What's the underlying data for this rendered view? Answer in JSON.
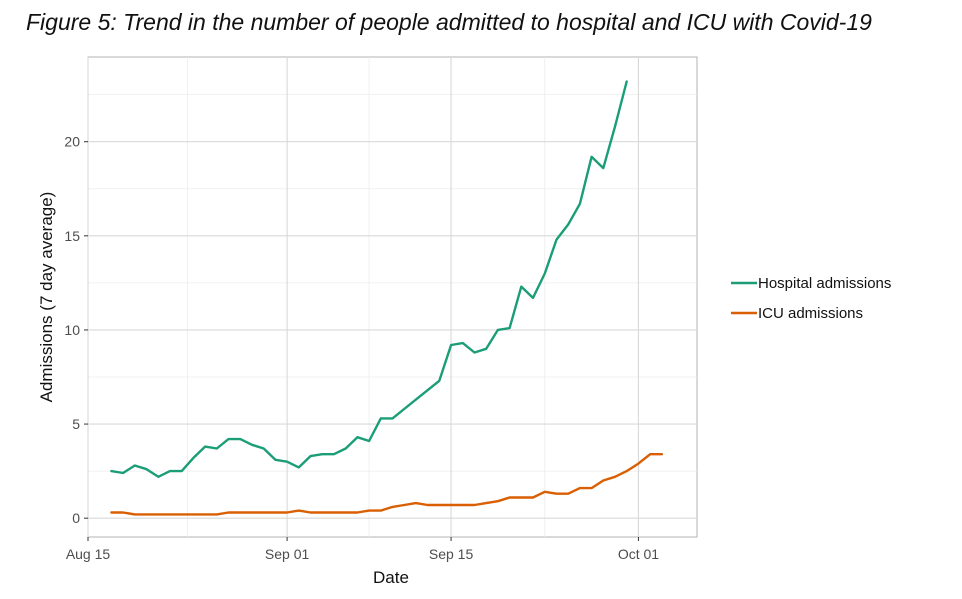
{
  "chart_data": {
    "type": "line",
    "title": "Figure 5: Trend in the number of people admitted to hospital and ICU with Covid-19",
    "xlabel": "Date",
    "ylabel": "Admissions (7 day average)",
    "x_ticks": [
      "Aug 15",
      "Sep 01",
      "Sep 15",
      "Oct 01"
    ],
    "x_tick_dates": [
      "2020-08-15",
      "2020-09-01",
      "2020-09-15",
      "2020-10-01"
    ],
    "y_ticks": [
      "0",
      "5",
      "10",
      "15",
      "20"
    ],
    "ylim": [
      -1,
      24.5
    ],
    "xlim": [
      "2020-08-15",
      "2020-10-06"
    ],
    "grid": true,
    "legend_position": "right",
    "series": [
      {
        "name": "Hospital admissions",
        "color": "#1b9e77",
        "x": [
          "2020-08-17",
          "2020-08-18",
          "2020-08-19",
          "2020-08-20",
          "2020-08-21",
          "2020-08-22",
          "2020-08-23",
          "2020-08-24",
          "2020-08-25",
          "2020-08-26",
          "2020-08-27",
          "2020-08-28",
          "2020-08-29",
          "2020-08-30",
          "2020-08-31",
          "2020-09-01",
          "2020-09-02",
          "2020-09-03",
          "2020-09-04",
          "2020-09-05",
          "2020-09-06",
          "2020-09-07",
          "2020-09-08",
          "2020-09-09",
          "2020-09-10",
          "2020-09-11",
          "2020-09-12",
          "2020-09-13",
          "2020-09-14",
          "2020-09-15",
          "2020-09-16",
          "2020-09-17",
          "2020-09-18",
          "2020-09-19",
          "2020-09-20",
          "2020-09-21",
          "2020-09-22",
          "2020-09-23",
          "2020-09-24",
          "2020-09-25",
          "2020-09-26",
          "2020-09-27",
          "2020-09-28",
          "2020-09-29",
          "2020-09-30",
          "2020-10-01"
        ],
        "values": [
          2.5,
          2.4,
          2.8,
          2.6,
          2.2,
          2.5,
          2.5,
          3.2,
          3.8,
          3.7,
          4.2,
          4.2,
          3.9,
          3.7,
          3.1,
          3.0,
          2.7,
          3.3,
          3.4,
          3.4,
          3.7,
          4.3,
          4.1,
          5.3,
          5.3,
          5.8,
          6.3,
          6.8,
          7.3,
          9.2,
          9.3,
          8.8,
          9.0,
          10.0,
          10.1,
          12.3,
          11.7,
          13.0,
          14.8,
          15.6,
          16.7,
          19.2,
          18.6,
          20.8,
          23.2,
          null
        ]
      },
      {
        "name": "ICU admissions",
        "color": "#d95f02",
        "x": [
          "2020-08-17",
          "2020-08-18",
          "2020-08-19",
          "2020-08-20",
          "2020-08-21",
          "2020-08-22",
          "2020-08-23",
          "2020-08-24",
          "2020-08-25",
          "2020-08-26",
          "2020-08-27",
          "2020-08-28",
          "2020-08-29",
          "2020-08-30",
          "2020-08-31",
          "2020-09-01",
          "2020-09-02",
          "2020-09-03",
          "2020-09-04",
          "2020-09-05",
          "2020-09-06",
          "2020-09-07",
          "2020-09-08",
          "2020-09-09",
          "2020-09-10",
          "2020-09-11",
          "2020-09-12",
          "2020-09-13",
          "2020-09-14",
          "2020-09-15",
          "2020-09-16",
          "2020-09-17",
          "2020-09-18",
          "2020-09-19",
          "2020-09-20",
          "2020-09-21",
          "2020-09-22",
          "2020-09-23",
          "2020-09-24",
          "2020-09-25",
          "2020-09-26",
          "2020-09-27",
          "2020-09-28",
          "2020-09-29",
          "2020-09-30",
          "2020-10-01",
          "2020-10-02",
          "2020-10-03"
        ],
        "values": [
          0.3,
          0.3,
          0.2,
          0.2,
          0.2,
          0.2,
          0.2,
          0.2,
          0.2,
          0.2,
          0.3,
          0.3,
          0.3,
          0.3,
          0.3,
          0.3,
          0.4,
          0.3,
          0.3,
          0.3,
          0.3,
          0.3,
          0.4,
          0.4,
          0.6,
          0.7,
          0.8,
          0.7,
          0.7,
          0.7,
          0.7,
          0.7,
          0.8,
          0.9,
          1.1,
          1.1,
          1.1,
          1.4,
          1.3,
          1.3,
          1.6,
          1.6,
          2.0,
          2.2,
          2.5,
          2.9,
          3.4,
          3.4
        ]
      }
    ]
  }
}
